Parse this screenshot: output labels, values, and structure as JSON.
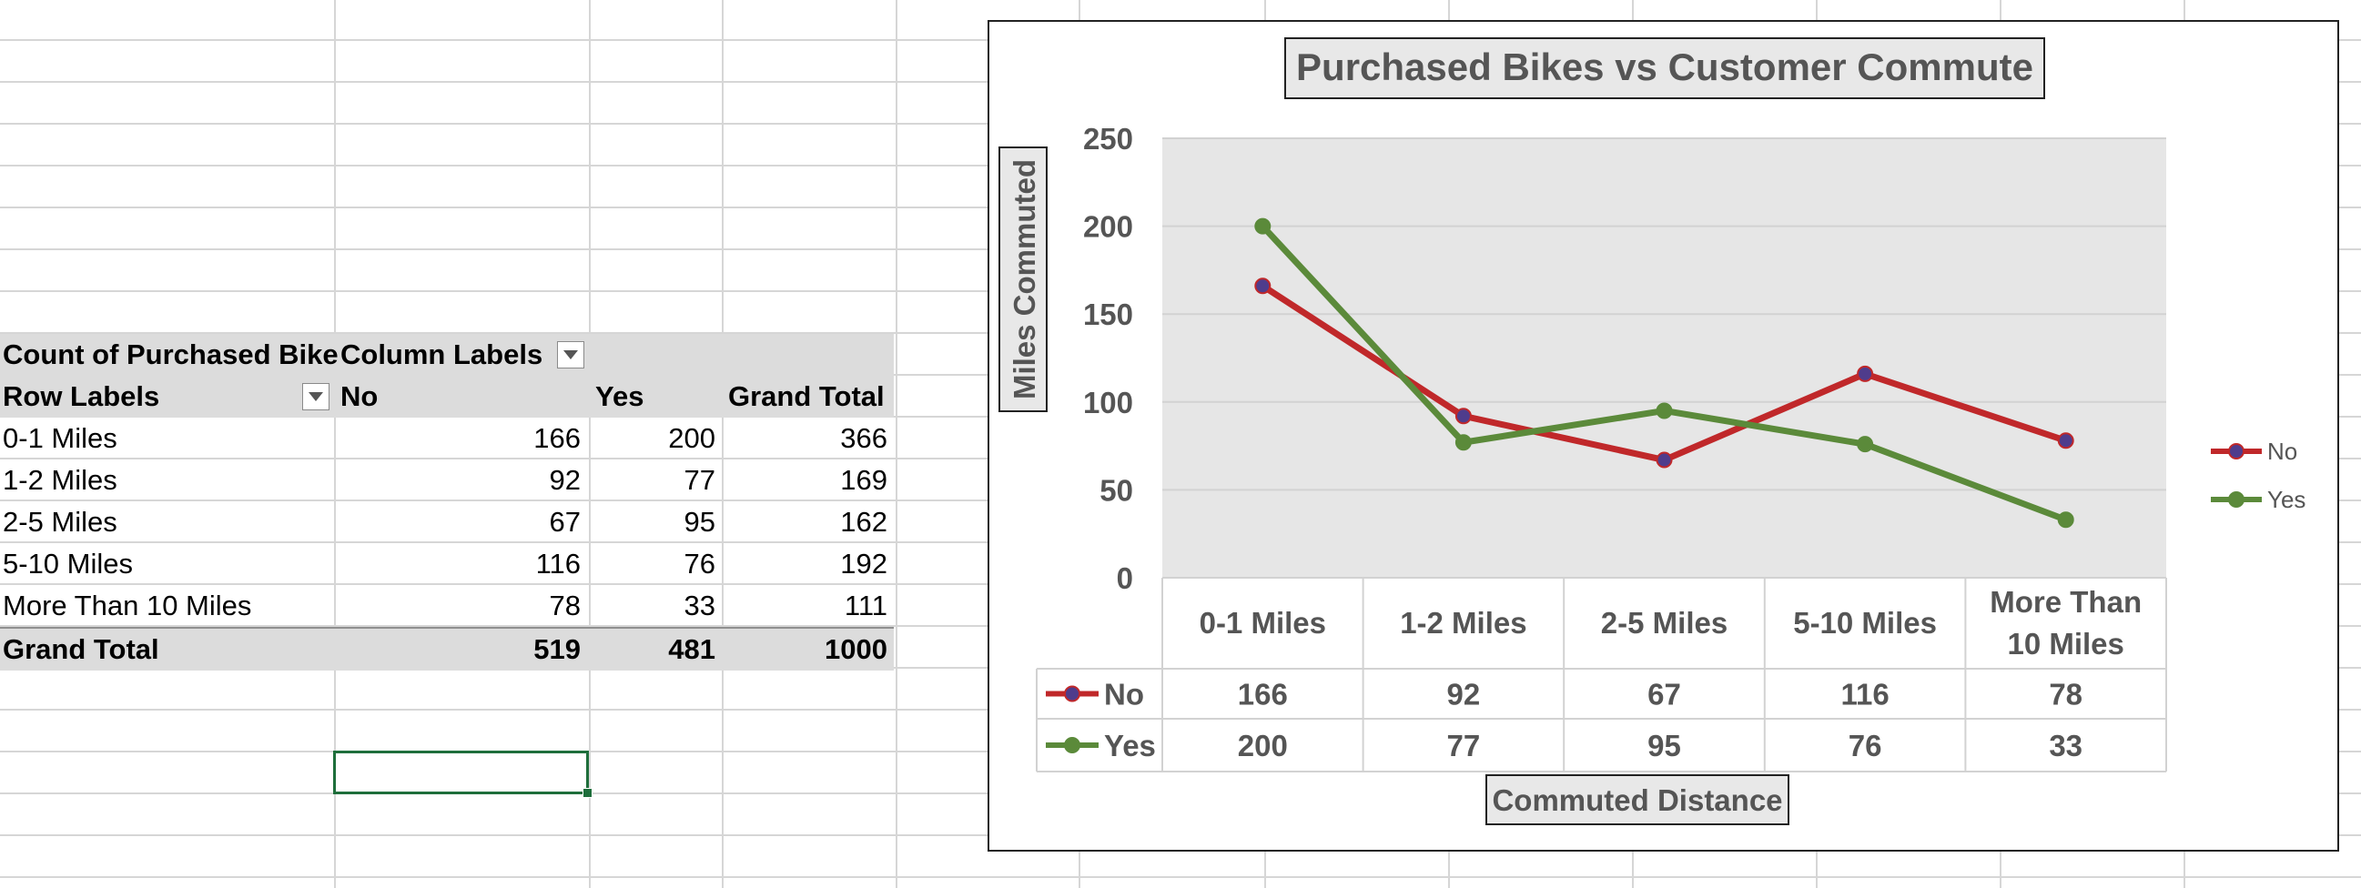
{
  "pivot": {
    "header1": {
      "label": "Count of Purchased Bike",
      "col_labels": "Column Labels"
    },
    "header2": {
      "row_labels": "Row Labels",
      "no": "No",
      "yes": "Yes",
      "grand_total": "Grand Total"
    },
    "rows": [
      {
        "label": "0-1 Miles",
        "no": "166",
        "yes": "200",
        "total": "366"
      },
      {
        "label": "1-2 Miles",
        "no": "92",
        "yes": "77",
        "total": "169"
      },
      {
        "label": "2-5 Miles",
        "no": "67",
        "yes": "95",
        "total": "162"
      },
      {
        "label": "5-10 Miles",
        "no": "116",
        "yes": "76",
        "total": "192"
      },
      {
        "label": "More Than 10 Miles",
        "no": "78",
        "yes": "33",
        "total": "111"
      }
    ],
    "grand": {
      "label": "Grand Total",
      "no": "519",
      "yes": "481",
      "total": "1000"
    }
  },
  "chart_data": {
    "type": "line",
    "title": "Purchased Bikes vs Customer Commute",
    "xlabel": "Commuted Distance",
    "ylabel": "Miles Commuted",
    "categories": [
      "0-1 Miles",
      "1-2 Miles",
      "2-5 Miles",
      "5-10 Miles",
      "More Than 10 Miles"
    ],
    "category_lines": [
      [
        "0-1 Miles"
      ],
      [
        "1-2 Miles"
      ],
      [
        "2-5 Miles"
      ],
      [
        "5-10 Miles"
      ],
      [
        "More Than",
        "10 Miles"
      ]
    ],
    "ylim": [
      0,
      250
    ],
    "yticks": [
      0,
      50,
      100,
      150,
      200,
      250
    ],
    "grid": true,
    "legend_position": "right",
    "data_table": true,
    "series": [
      {
        "name": "No",
        "values": [
          166,
          92,
          67,
          116,
          78
        ],
        "color": "#c0282a",
        "marker_color": "#4f3c8c"
      },
      {
        "name": "Yes",
        "values": [
          200,
          77,
          95,
          76,
          33
        ],
        "color": "#5b8a3a",
        "marker_color": "#5b8a3a"
      }
    ]
  },
  "colors": {
    "plot_background": "#e6e6e6",
    "header_fill": "#dcdcdc",
    "selection": "#1e6e3b"
  }
}
